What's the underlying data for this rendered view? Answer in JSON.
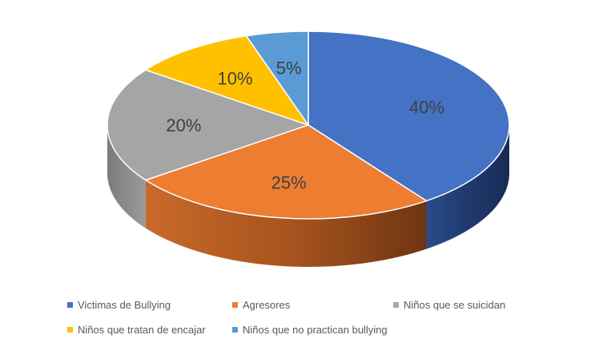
{
  "chart_data": {
    "type": "pie",
    "style": "3d",
    "categories": [
      "Victimas de Bullying",
      "Agresores",
      "Niños que se suicidan",
      "Niños que tratan de encajar",
      "Niños que no practican bullying"
    ],
    "values": [
      40,
      25,
      20,
      10,
      5
    ],
    "labels": [
      "40%",
      "25%",
      "20%",
      "10%",
      "5%"
    ],
    "colors": [
      "#4472C4",
      "#ED7D31",
      "#A5A5A5",
      "#FFC000",
      "#5B9BD5"
    ],
    "legend_position": "bottom"
  }
}
